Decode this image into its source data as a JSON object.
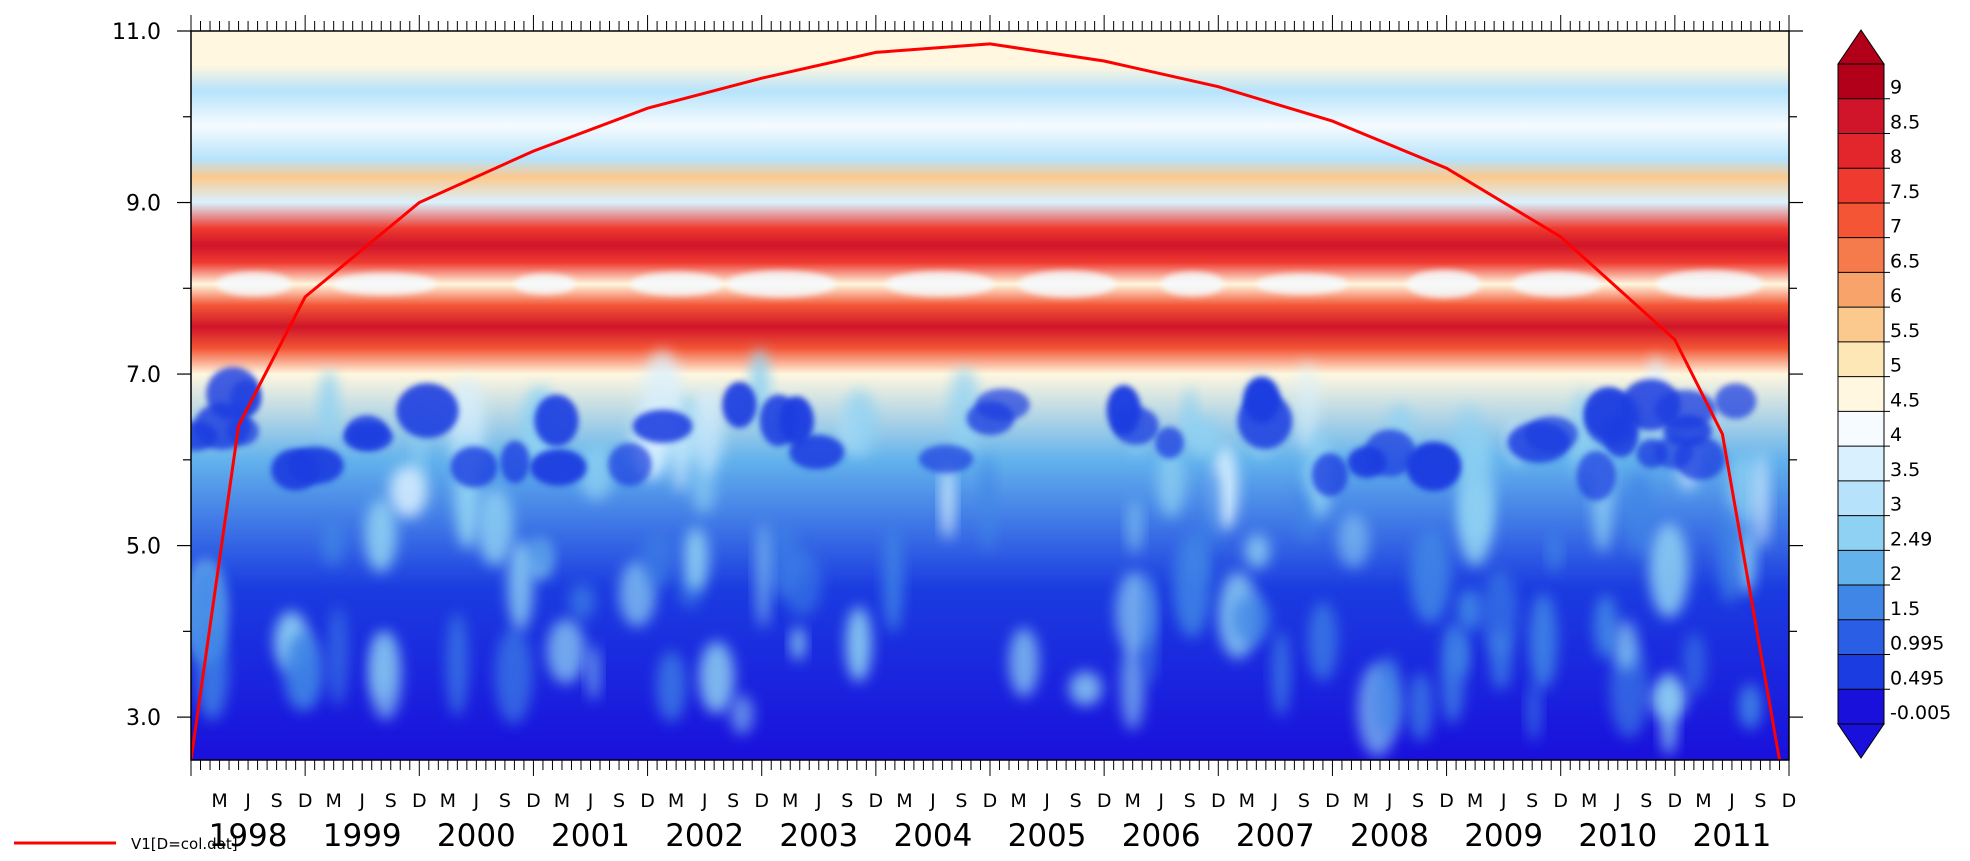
{
  "chart_data": {
    "type": "heatmap",
    "title": "",
    "xlabel": "",
    "ylabel": "",
    "x_range": [
      "1998-01",
      "2011-12"
    ],
    "ylim": [
      2.5,
      11.0
    ],
    "yticks": [
      "3.0",
      "5.0",
      "7.0",
      "9.0",
      "11.0"
    ],
    "year_labels": [
      "1998",
      "1999",
      "2000",
      "2001",
      "2002",
      "2003",
      "2004",
      "2005",
      "2006",
      "2007",
      "2008",
      "2009",
      "2010",
      "2011"
    ],
    "month_labels": [
      "M",
      "J",
      "S",
      "D"
    ],
    "bands": [
      {
        "period": 10.6,
        "level": 4.6
      },
      {
        "period": 10.3,
        "level": 3.0
      },
      {
        "period": 9.9,
        "level": 4.2
      },
      {
        "period": 9.5,
        "level": 3.2
      },
      {
        "period": 9.3,
        "level": 5.5
      },
      {
        "period": 9.0,
        "level": 3.5
      },
      {
        "period": 8.7,
        "level": 7.5
      },
      {
        "period": 8.5,
        "level": 8.6
      },
      {
        "period": 8.3,
        "level": 7.4
      },
      {
        "period": 8.05,
        "level": 4.3
      },
      {
        "period": 7.8,
        "level": 7.0
      },
      {
        "period": 7.55,
        "level": 8.6
      },
      {
        "period": 7.3,
        "level": 7.2
      },
      {
        "period": 7.0,
        "level": 4.5
      },
      {
        "period": 6.0,
        "level": 1.8
      },
      {
        "period": 4.5,
        "level": 0.6
      },
      {
        "period": 2.5,
        "level": -0.005
      }
    ],
    "cone_of_influence": {
      "series_name": "V1[D=col.dat]",
      "color": "#ff0000",
      "x": [
        "1998-01",
        "1998-06",
        "1999-01",
        "2000-01",
        "2001-01",
        "2002-01",
        "2003-01",
        "2004-01",
        "2005-01",
        "2006-01",
        "2007-01",
        "2008-01",
        "2009-01",
        "2010-01",
        "2011-01",
        "2011-06",
        "2011-12"
      ],
      "y": [
        2.5,
        6.4,
        7.9,
        9.0,
        9.6,
        10.1,
        10.45,
        10.75,
        10.85,
        10.65,
        10.35,
        9.95,
        9.4,
        8.6,
        7.4,
        6.3,
        2.5
      ]
    },
    "colorbar": {
      "levels": [
        "9",
        "8.5",
        "8",
        "7.5",
        "7",
        "6.5",
        "6",
        "5.5",
        "5",
        "4.5",
        "4",
        "3.5",
        "3",
        "2.49",
        "2",
        "1.5",
        "0.995",
        "0.495",
        "-0.005"
      ],
      "colors": [
        "#b2001a",
        "#d0152a",
        "#e2262c",
        "#ef3a30",
        "#f35535",
        "#f57a4c",
        "#f8a36a",
        "#fbc98e",
        "#fde7b7",
        "#fff7df",
        "#f5fbff",
        "#d9f1ff",
        "#b6e3fb",
        "#8fd1f3",
        "#63b2ec",
        "#3f86e6",
        "#2a5ee5",
        "#1b3ce0",
        "#1a10dc"
      ]
    }
  }
}
